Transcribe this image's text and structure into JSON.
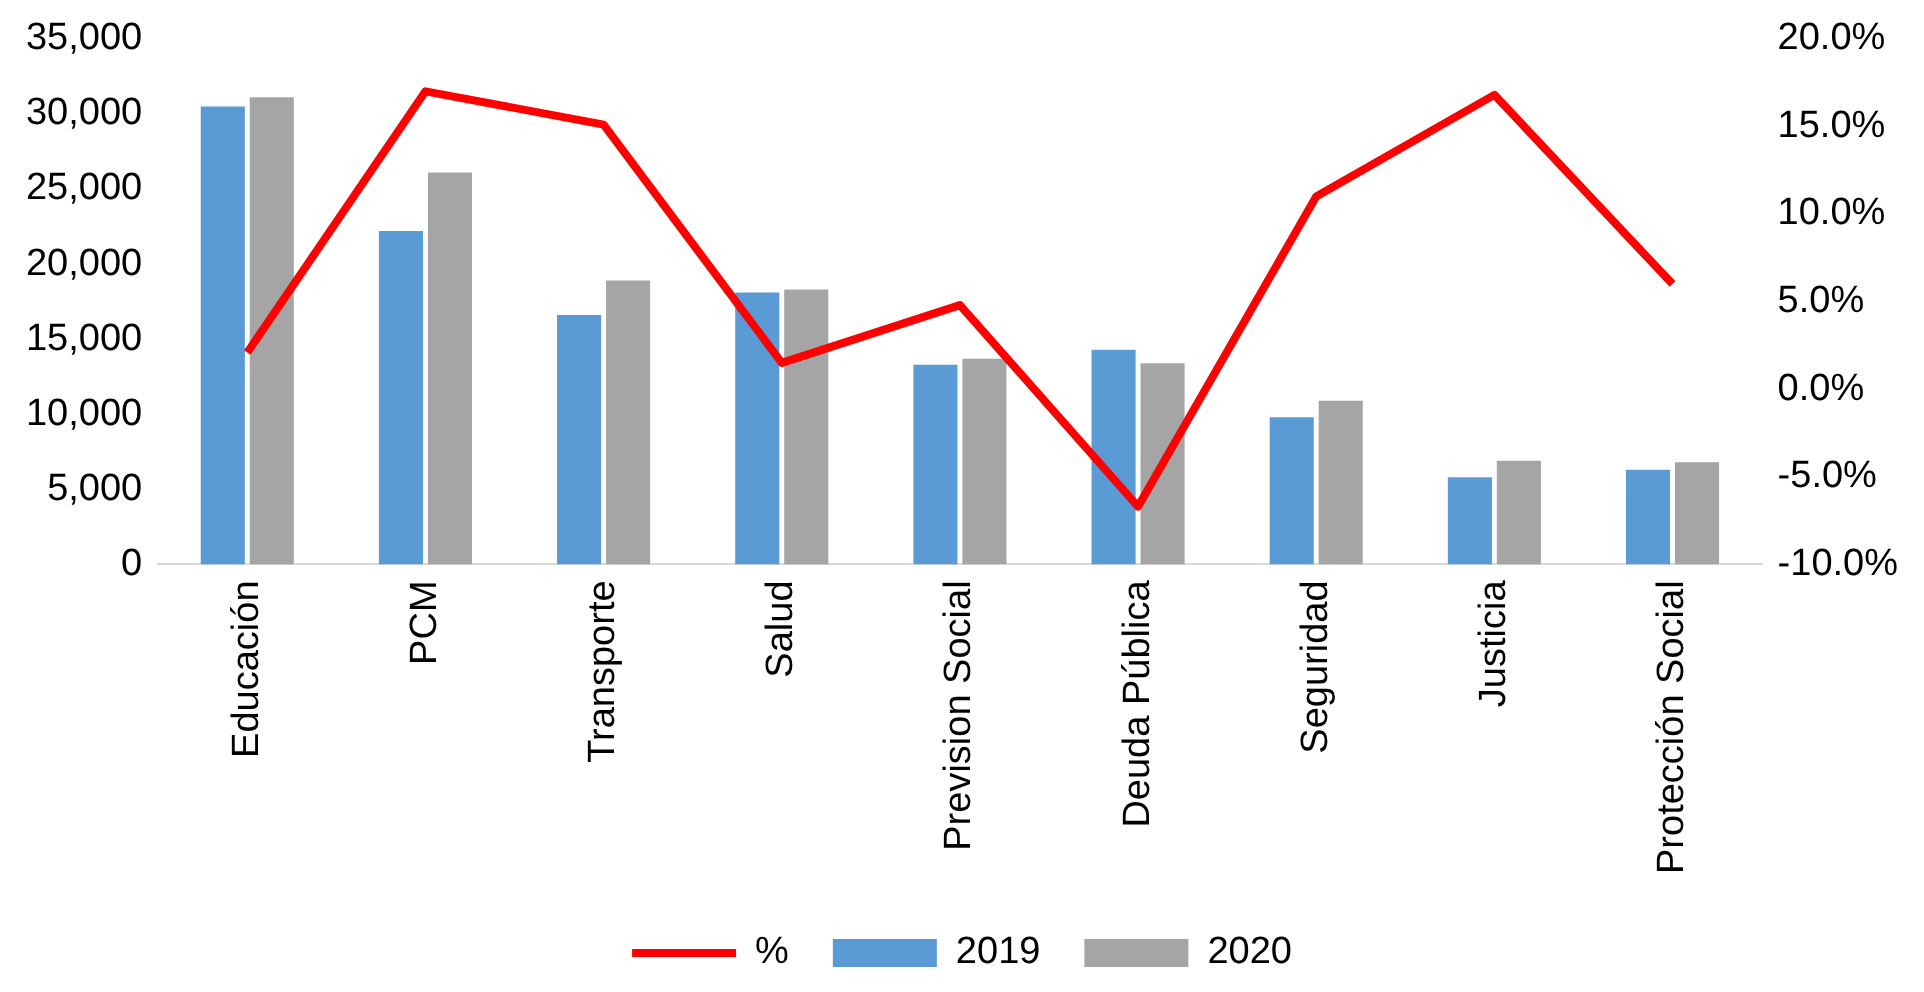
{
  "chart_data": {
    "type": "bar",
    "categories": [
      "Educación",
      "PCM",
      "Transporte",
      "Salud",
      "Prevision Social",
      "Deuda Pública",
      "Seguridad",
      "Justicia",
      "Protección Social"
    ],
    "series": [
      {
        "name": "2019",
        "color": "#5b9bd5",
        "values": [
          30500,
          22200,
          16600,
          18100,
          13300,
          14300,
          9800,
          5800,
          6300
        ]
      },
      {
        "name": "2020",
        "color": "#a5a5a5",
        "values": [
          31100,
          26100,
          18900,
          18300,
          13700,
          13400,
          10900,
          6900,
          6800
        ]
      },
      {
        "name": "%",
        "type": "line",
        "axis": "y2",
        "color": "#ff0000",
        "values": [
          2.1,
          17.0,
          15.1,
          1.5,
          4.8,
          -6.7,
          11.0,
          16.8,
          6.0
        ]
      }
    ],
    "ylim": [
      0,
      35000
    ],
    "yticks": [
      {
        "value": 0,
        "label": "0"
      },
      {
        "value": 5000,
        "label": "5,000"
      },
      {
        "value": 10000,
        "label": "10,000"
      },
      {
        "value": 15000,
        "label": "15,000"
      },
      {
        "value": 20000,
        "label": "20,000"
      },
      {
        "value": 25000,
        "label": "25,000"
      },
      {
        "value": 30000,
        "label": "30,000"
      },
      {
        "value": 35000,
        "label": "35,000"
      }
    ],
    "y2lim": [
      -10,
      20
    ],
    "y2ticks": [
      {
        "value": -10,
        "label": "-10.0%"
      },
      {
        "value": -5,
        "label": "-5.0%"
      },
      {
        "value": 0,
        "label": "0.0%"
      },
      {
        "value": 5,
        "label": "5.0%"
      },
      {
        "value": 10,
        "label": "10.0%"
      },
      {
        "value": 15,
        "label": "15.0%"
      },
      {
        "value": 20,
        "label": "20.0%"
      }
    ],
    "grid": false,
    "legend": "bottom",
    "marker": "none"
  }
}
